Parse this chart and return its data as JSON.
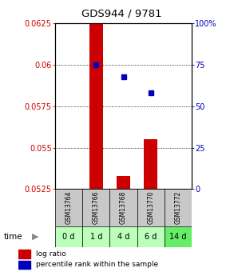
{
  "title": "GDS944 / 9781",
  "samples": [
    "GSM13764",
    "GSM13766",
    "GSM13768",
    "GSM13770",
    "GSM13772"
  ],
  "time_labels": [
    "0 d",
    "1 d",
    "4 d",
    "6 d",
    "14 d"
  ],
  "x_positions": [
    0,
    1,
    2,
    3,
    4
  ],
  "log_ratio_values": [
    null,
    0.0625,
    0.0533,
    0.0555,
    null
  ],
  "log_ratio_base": 0.0525,
  "percentile_values_pct": [
    null,
    75,
    68,
    58,
    null
  ],
  "ylim": [
    0.0525,
    0.0625
  ],
  "yticks_left": [
    0.0525,
    0.055,
    0.0575,
    0.06,
    0.0625
  ],
  "yticks_right": [
    0,
    25,
    50,
    75,
    100
  ],
  "right_ylim": [
    0,
    100
  ],
  "bar_color": "#cc0000",
  "point_color": "#0000bb",
  "bar_width": 0.5,
  "bg_color": "#ffffff",
  "sample_bg": "#c8c8c8",
  "time_bg_colors": [
    "#bbffbb",
    "#bbffbb",
    "#bbffbb",
    "#bbffbb",
    "#66ee66"
  ],
  "left_label_color": "#cc0000",
  "right_label_color": "#0000bb",
  "legend_log_ratio": "log ratio",
  "legend_percentile": "percentile rank within the sample",
  "time_arrow_label": "time"
}
